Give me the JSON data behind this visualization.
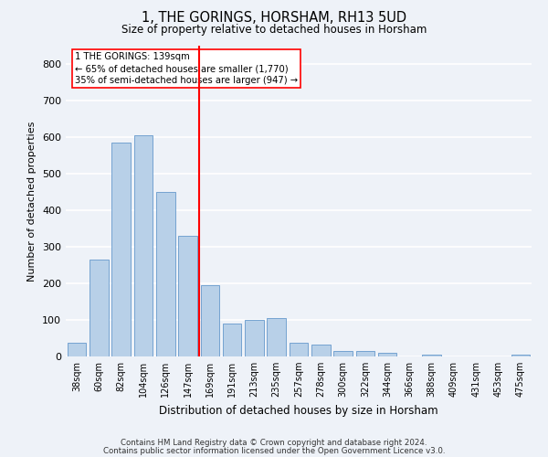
{
  "title": "1, THE GORINGS, HORSHAM, RH13 5UD",
  "subtitle": "Size of property relative to detached houses in Horsham",
  "xlabel": "Distribution of detached houses by size in Horsham",
  "ylabel": "Number of detached properties",
  "categories": [
    "38sqm",
    "60sqm",
    "82sqm",
    "104sqm",
    "126sqm",
    "147sqm",
    "169sqm",
    "191sqm",
    "213sqm",
    "235sqm",
    "257sqm",
    "278sqm",
    "300sqm",
    "322sqm",
    "344sqm",
    "366sqm",
    "388sqm",
    "409sqm",
    "431sqm",
    "453sqm",
    "475sqm"
  ],
  "values": [
    38,
    265,
    585,
    605,
    450,
    330,
    195,
    90,
    100,
    105,
    38,
    32,
    15,
    15,
    10,
    0,
    6,
    0,
    0,
    0,
    6
  ],
  "bar_color": "#b8d0e8",
  "bar_edge_color": "#6699cc",
  "vline_x": 5.5,
  "vline_label": "1 THE GORINGS: 139sqm",
  "annotation_line1": "← 65% of detached houses are smaller (1,770)",
  "annotation_line2": "35% of semi-detached houses are larger (947) →",
  "ylim": [
    0,
    850
  ],
  "yticks": [
    0,
    100,
    200,
    300,
    400,
    500,
    600,
    700,
    800
  ],
  "background_color": "#eef2f8",
  "grid_color": "#ffffff",
  "footer_line1": "Contains HM Land Registry data © Crown copyright and database right 2024.",
  "footer_line2": "Contains public sector information licensed under the Open Government Licence v3.0."
}
